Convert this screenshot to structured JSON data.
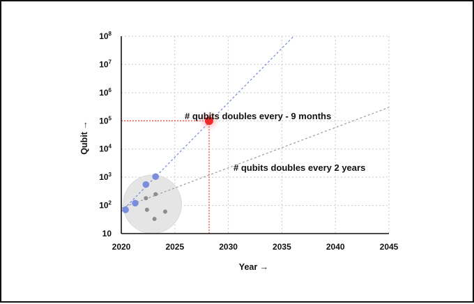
{
  "chart_data": {
    "type": "scatter",
    "xlabel": "Year →",
    "ylabel": "Qubit →",
    "xlim": [
      2020,
      2045
    ],
    "ylim_log10": [
      1,
      8
    ],
    "y_scale": "log",
    "grid": true,
    "x_ticks": [
      "2020",
      "2025",
      "2030",
      "2035",
      "2040",
      "2045"
    ],
    "y_ticks": [
      {
        "base": "10",
        "exp": ""
      },
      {
        "base": "10",
        "exp": "2"
      },
      {
        "base": "10",
        "exp": "3"
      },
      {
        "base": "10",
        "exp": "4"
      },
      {
        "base": "10",
        "exp": "5"
      },
      {
        "base": "10",
        "exp": "6"
      },
      {
        "base": "10",
        "exp": "7"
      },
      {
        "base": "10",
        "exp": "8"
      }
    ],
    "annotations": [
      {
        "text": "# qubits doubles every - 9 months",
        "x": 2030.5,
        "y": 1000000
      },
      {
        "text": "# qubits doubles every 2 years",
        "x": 2030.5,
        "y": 2500
      }
    ],
    "trend_lines": [
      {
        "label": "# qubits doubles every - 9 months",
        "color": "#7086d6",
        "from": [
          2020,
          60
        ],
        "to": [
          2036.1,
          100000000
        ]
      },
      {
        "label": "# qubits doubles every 2 years",
        "color": "#9a9a9a",
        "from": [
          2020,
          80
        ],
        "to": [
          2045,
          300000
        ]
      }
    ],
    "blue_points": [
      {
        "x": 2020.4,
        "y": 70
      },
      {
        "x": 2021.3,
        "y": 120
      },
      {
        "x": 2022.3,
        "y": 550
      },
      {
        "x": 2023.2,
        "y": 1050
      }
    ],
    "gray_points": [
      {
        "x": 2022.3,
        "y": 180
      },
      {
        "x": 2023.2,
        "y": 250
      },
      {
        "x": 2022.4,
        "y": 70
      },
      {
        "x": 2024.1,
        "y": 60
      },
      {
        "x": 2023.1,
        "y": 33
      }
    ],
    "highlight_point": {
      "x": 2028.2,
      "y": 100000,
      "color": "#ee2b2b"
    },
    "cluster_region": {
      "x": 2022.9,
      "y": 110,
      "color": "#e5e5e5"
    },
    "colors": {
      "blue_point": "#7b8edd",
      "gray_point": "#8c8c8c",
      "grid": "#c9c9c9",
      "highlight_guide": "#e94545"
    }
  }
}
